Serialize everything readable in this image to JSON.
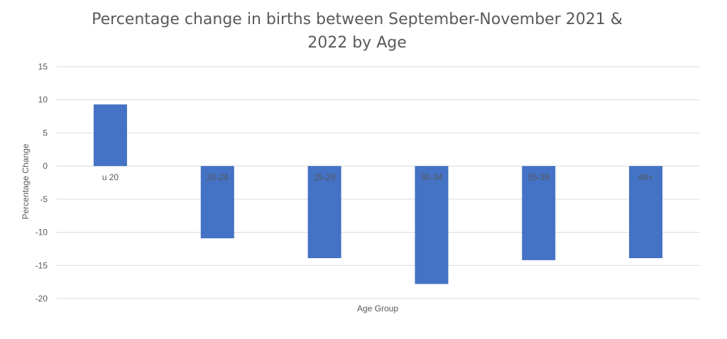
{
  "chart_data": {
    "type": "bar",
    "title_lines": [
      "Percentage change in births between September-November 2021 &",
      "2022 by Age"
    ],
    "xlabel": "Age Group",
    "ylabel": "Percentage Change",
    "categories": [
      "u 20",
      "20-24",
      "25-29",
      "30-34",
      "35-39",
      "40+"
    ],
    "values": [
      9.3,
      -10.9,
      -13.9,
      -17.8,
      -14.2,
      -13.9
    ],
    "ylim": [
      -20,
      15
    ],
    "yticks": [
      15,
      10,
      5,
      0,
      -5,
      -10,
      -15,
      -20
    ],
    "grid": true,
    "legend": "none",
    "bar_color": "#4472c4",
    "grid_color": "#d9d9d9",
    "text_color": "#595959"
  }
}
